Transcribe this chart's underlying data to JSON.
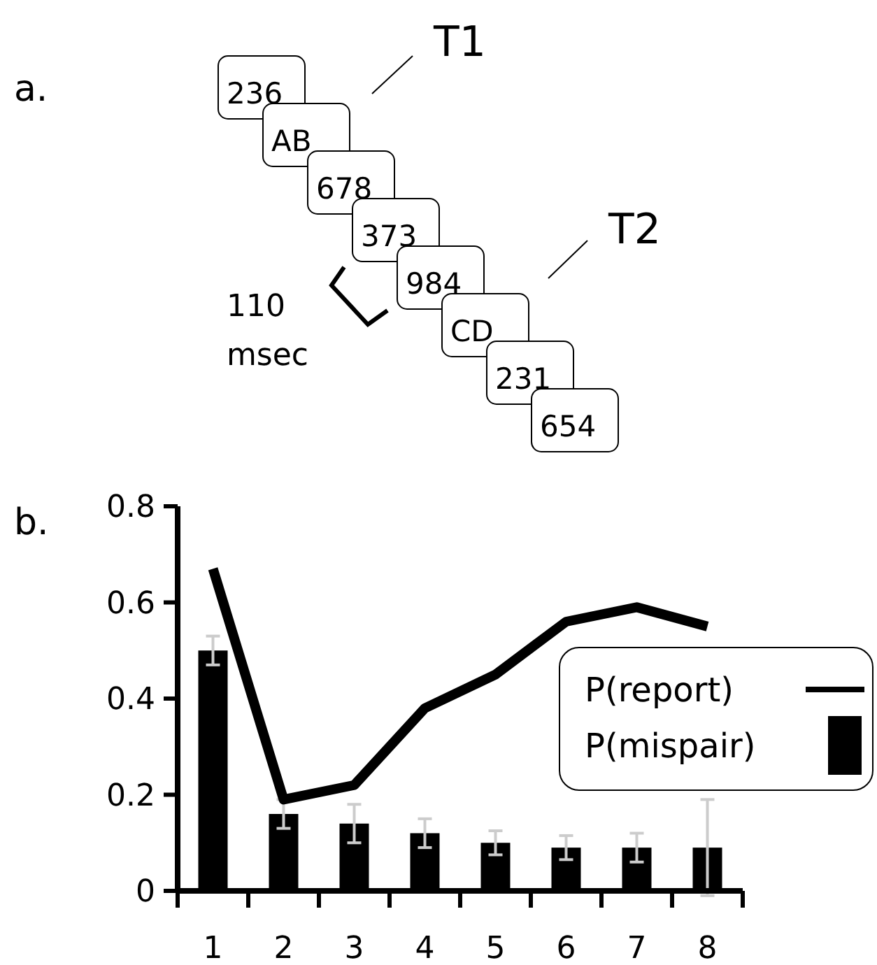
{
  "chart_data": [
    {
      "type": "other",
      "title": "a.",
      "categories": [
        "236",
        "AB",
        "678",
        "373",
        "984",
        "CD",
        "231",
        "654"
      ],
      "annotations": [
        "T1",
        "T2",
        "110 msec"
      ]
    },
    {
      "type": "bar",
      "title": "b.",
      "categories": [
        "1",
        "2",
        "3",
        "4",
        "5",
        "6",
        "7",
        "8"
      ],
      "series": [
        {
          "name": "P(report)",
          "type": "line",
          "color": "#000000",
          "values": [
            0.67,
            0.19,
            0.22,
            0.38,
            0.45,
            0.56,
            0.59,
            0.55
          ]
        },
        {
          "name": "P(mispair)",
          "type": "bar",
          "color": "#000000",
          "values": [
            0.5,
            0.16,
            0.14,
            0.12,
            0.1,
            0.09,
            0.09,
            0.09
          ],
          "errors": [
            0.03,
            0.03,
            0.04,
            0.03,
            0.025,
            0.025,
            0.03,
            0.1
          ]
        }
      ],
      "ylim": [
        0,
        0.8
      ],
      "yticks": [
        0,
        0.2,
        0.4,
        0.6,
        0.8
      ],
      "legend": "right",
      "line_style": "solid",
      "marker": "none"
    }
  ]
}
